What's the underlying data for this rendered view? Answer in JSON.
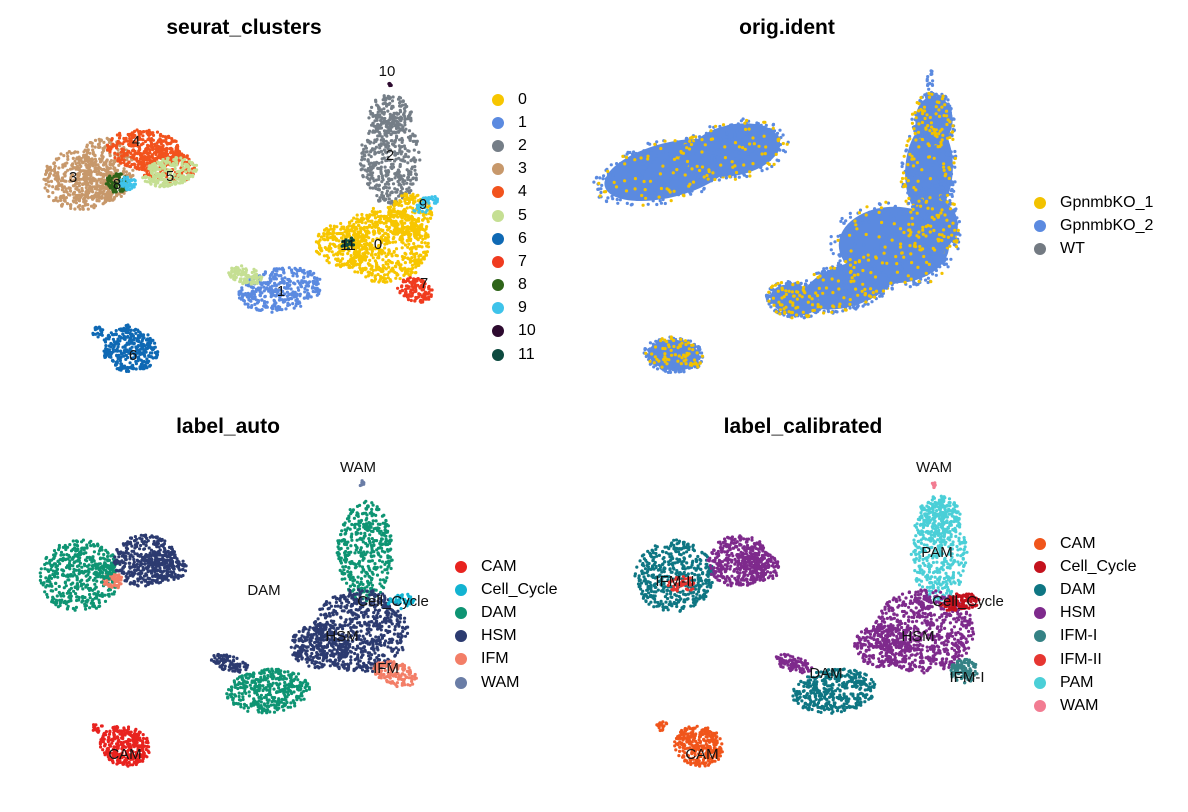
{
  "chart_data": [
    {
      "type": "scatter",
      "title": "seurat_clusters",
      "legend": [
        {
          "name": "0",
          "color": "#F7C600"
        },
        {
          "name": "1",
          "color": "#5B8AE0"
        },
        {
          "name": "2",
          "color": "#757E87"
        },
        {
          "name": "3",
          "color": "#C7986B"
        },
        {
          "name": "4",
          "color": "#F2531D"
        },
        {
          "name": "5",
          "color": "#C5DF93"
        },
        {
          "name": "6",
          "color": "#0F69B4"
        },
        {
          "name": "7",
          "color": "#F03B1F"
        },
        {
          "name": "8",
          "color": "#2E6419"
        },
        {
          "name": "9",
          "color": "#3EC3EA"
        },
        {
          "name": "10",
          "color": "#2D0A2F"
        },
        {
          "name": "11",
          "color": "#0D4A3F"
        }
      ],
      "cluster_labels": [
        "10",
        "2",
        "4",
        "3",
        "8",
        "5",
        "9",
        "11",
        "0",
        "1",
        "7",
        "6"
      ]
    },
    {
      "type": "scatter",
      "title": "orig.ident",
      "legend": [
        {
          "name": "GpnmbKO_1",
          "color": "#F2C200"
        },
        {
          "name": "GpnmbKO_2",
          "color": "#5B8AE0"
        },
        {
          "name": "WT",
          "color": "#737A82"
        }
      ],
      "cluster_labels": []
    },
    {
      "type": "scatter",
      "title": "label_auto",
      "legend": [
        {
          "name": "CAM",
          "color": "#E8231F"
        },
        {
          "name": "Cell_Cycle",
          "color": "#12B3D1"
        },
        {
          "name": "DAM",
          "color": "#0E9473"
        },
        {
          "name": "HSM",
          "color": "#2C3B70"
        },
        {
          "name": "IFM",
          "color": "#F37E67"
        },
        {
          "name": "WAM",
          "color": "#6A7DA6"
        }
      ],
      "cluster_labels": [
        "WAM",
        "DAM",
        "Cell_Cycle",
        "HSM",
        "IFM",
        "CAM"
      ]
    },
    {
      "type": "scatter",
      "title": "label_calibrated",
      "legend": [
        {
          "name": "CAM",
          "color": "#F0551B"
        },
        {
          "name": "Cell_Cycle",
          "color": "#C4121D"
        },
        {
          "name": "DAM",
          "color": "#0E7683"
        },
        {
          "name": "HSM",
          "color": "#7E2A8C"
        },
        {
          "name": "IFM-I",
          "color": "#358285"
        },
        {
          "name": "IFM-II",
          "color": "#E63631"
        },
        {
          "name": "PAM",
          "color": "#4BCFD7"
        },
        {
          "name": "WAM",
          "color": "#F27C92"
        }
      ],
      "cluster_labels": [
        "WAM",
        "PAM",
        "IFM-II",
        "Cell_Cycle",
        "HSM",
        "DAM",
        "IFM-I",
        "CAM"
      ]
    }
  ]
}
